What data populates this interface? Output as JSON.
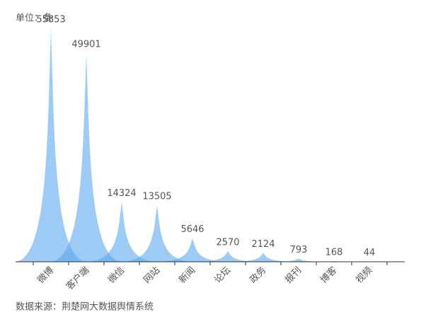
{
  "chart_data": {
    "type": "bar",
    "unit_label": "单位：条",
    "source": "数据来源：荆楚网大数据舆情系统",
    "categories": [
      "微博",
      "客户端",
      "微信",
      "网站",
      "新闻",
      "论坛",
      "政务",
      "报刊",
      "博客",
      "视频"
    ],
    "values": [
      55853,
      49901,
      14324,
      13505,
      5646,
      2570,
      2124,
      793,
      168,
      44
    ],
    "color": "#5aa9f0"
  }
}
